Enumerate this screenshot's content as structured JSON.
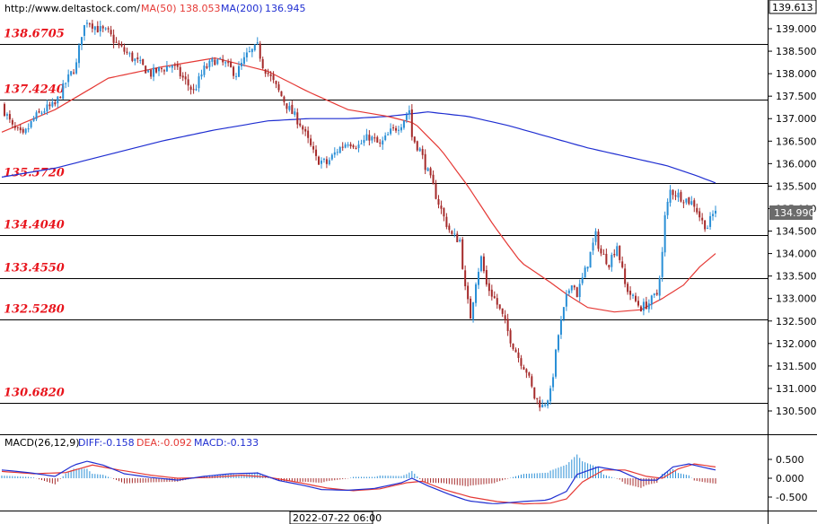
{
  "header": {
    "site": "http://www.deltastock.com/",
    "ma50_label": "MA(50)",
    "ma50_value": "138.053",
    "ma200_label": "MA(200)",
    "ma200_value": "136.945"
  },
  "price_axis": {
    "top_value": "139.613",
    "current_price": "134.990",
    "ticks": [
      "139.000",
      "138.500",
      "138.000",
      "137.500",
      "137.000",
      "136.500",
      "136.000",
      "135.500",
      "135.000",
      "134.500",
      "134.000",
      "133.500",
      "133.000",
      "132.500",
      "132.000",
      "131.500",
      "131.000",
      "130.500"
    ]
  },
  "macd": {
    "title": "MACD(26,12,9)",
    "diff_label": "DIFF:-0.158",
    "dea_label": "DEA:-0.092",
    "macd_label": "MACD:-0.133",
    "ticks": [
      "0.500",
      "0.000",
      "-0.500"
    ]
  },
  "time_axis": {
    "crosshair_label": "2022-07-22 06:00"
  },
  "colors": {
    "up": "#2a8fd6",
    "down": "#a52a2a",
    "ma50": "#e53935",
    "ma200": "#1f2ed1",
    "level_text": "#e8141c",
    "diff": "#1f2ed1",
    "dea": "#e53935"
  },
  "chart_data": {
    "type": "candlestick",
    "title": "",
    "ylim": [
      130.25,
      139.7
    ],
    "levels": [
      {
        "label": "138.6705",
        "value": 138.6705
      },
      {
        "label": "137.4240",
        "value": 137.424
      },
      {
        "label": "135.5720",
        "value": 135.572
      },
      {
        "label": "134.4040",
        "value": 134.404
      },
      {
        "label": "133.4550",
        "value": 133.455
      },
      {
        "label": "132.5280",
        "value": 132.528
      },
      {
        "label": "130.6820",
        "value": 130.682
      }
    ],
    "close_anchors": [
      [
        0,
        137.3
      ],
      [
        4,
        136.8
      ],
      [
        8,
        136.6
      ],
      [
        12,
        137.0
      ],
      [
        16,
        137.2
      ],
      [
        20,
        137.3
      ],
      [
        24,
        137.8
      ],
      [
        28,
        138.2
      ],
      [
        30,
        138.9
      ],
      [
        32,
        139.2
      ],
      [
        36,
        139.0
      ],
      [
        40,
        138.9
      ],
      [
        44,
        138.6
      ],
      [
        48,
        138.4
      ],
      [
        52,
        138.2
      ],
      [
        56,
        138.0
      ],
      [
        60,
        138.1
      ],
      [
        64,
        138.2
      ],
      [
        68,
        137.9
      ],
      [
        72,
        137.6
      ],
      [
        76,
        138.1
      ],
      [
        80,
        138.3
      ],
      [
        84,
        138.2
      ],
      [
        88,
        138.0
      ],
      [
        92,
        138.4
      ],
      [
        96,
        138.6
      ],
      [
        98,
        138.2
      ],
      [
        100,
        138.0
      ],
      [
        104,
        137.6
      ],
      [
        108,
        137.2
      ],
      [
        112,
        136.9
      ],
      [
        115,
        136.5
      ],
      [
        118,
        136.1
      ],
      [
        122,
        136.0
      ],
      [
        126,
        136.3
      ],
      [
        130,
        136.5
      ],
      [
        134,
        136.4
      ],
      [
        138,
        136.6
      ],
      [
        142,
        136.4
      ],
      [
        146,
        136.7
      ],
      [
        150,
        136.9
      ],
      [
        153,
        137.2
      ],
      [
        154,
        136.6
      ],
      [
        157,
        136.3
      ],
      [
        160,
        135.8
      ],
      [
        163,
        135.3
      ],
      [
        166,
        134.8
      ],
      [
        169,
        134.4
      ],
      [
        172,
        134.3
      ],
      [
        174,
        133.2
      ],
      [
        176,
        132.6
      ],
      [
        178,
        133.4
      ],
      [
        180,
        133.9
      ],
      [
        182,
        133.3
      ],
      [
        185,
        133.0
      ],
      [
        188,
        132.6
      ],
      [
        191,
        132.1
      ],
      [
        194,
        131.7
      ],
      [
        197,
        131.4
      ],
      [
        200,
        130.8
      ],
      [
        203,
        130.6
      ],
      [
        206,
        130.9
      ],
      [
        209,
        132.2
      ],
      [
        212,
        133.0
      ],
      [
        214,
        133.4
      ],
      [
        216,
        133.1
      ],
      [
        219,
        133.6
      ],
      [
        221,
        134.0
      ],
      [
        223,
        134.4
      ],
      [
        225,
        134.0
      ],
      [
        228,
        133.8
      ],
      [
        231,
        134.2
      ],
      [
        234,
        133.3
      ],
      [
        237,
        133.0
      ],
      [
        240,
        132.8
      ],
      [
        243,
        132.9
      ],
      [
        246,
        133.1
      ],
      [
        248,
        134.0
      ],
      [
        249,
        134.8
      ],
      [
        251,
        135.4
      ],
      [
        254,
        135.3
      ],
      [
        257,
        135.2
      ],
      [
        260,
        135.1
      ],
      [
        263,
        134.7
      ],
      [
        265,
        134.6
      ],
      [
        268,
        134.99
      ]
    ],
    "ma50": [
      [
        0,
        136.7
      ],
      [
        20,
        137.2
      ],
      [
        40,
        137.9
      ],
      [
        60,
        138.15
      ],
      [
        80,
        138.35
      ],
      [
        100,
        138.05
      ],
      [
        115,
        137.6
      ],
      [
        130,
        137.2
      ],
      [
        145,
        137.05
      ],
      [
        155,
        136.9
      ],
      [
        165,
        136.3
      ],
      [
        175,
        135.5
      ],
      [
        185,
        134.6
      ],
      [
        195,
        133.8
      ],
      [
        205,
        133.4
      ],
      [
        212,
        133.1
      ],
      [
        220,
        132.8
      ],
      [
        230,
        132.7
      ],
      [
        240,
        132.75
      ],
      [
        248,
        133.0
      ],
      [
        256,
        133.3
      ],
      [
        262,
        133.7
      ],
      [
        268,
        134.0
      ]
    ],
    "ma200": [
      [
        0,
        135.7
      ],
      [
        20,
        135.9
      ],
      [
        40,
        136.2
      ],
      [
        60,
        136.5
      ],
      [
        80,
        136.75
      ],
      [
        100,
        136.95
      ],
      [
        115,
        137.0
      ],
      [
        130,
        137.0
      ],
      [
        145,
        137.05
      ],
      [
        160,
        137.15
      ],
      [
        175,
        137.05
      ],
      [
        190,
        136.85
      ],
      [
        205,
        136.6
      ],
      [
        220,
        136.35
      ],
      [
        235,
        136.15
      ],
      [
        250,
        135.95
      ],
      [
        260,
        135.75
      ],
      [
        268,
        135.57
      ]
    ],
    "macd_diff": [
      [
        0,
        0.22
      ],
      [
        10,
        0.15
      ],
      [
        20,
        0.05
      ],
      [
        27,
        0.35
      ],
      [
        32,
        0.45
      ],
      [
        38,
        0.35
      ],
      [
        46,
        0.12
      ],
      [
        56,
        0.02
      ],
      [
        66,
        -0.05
      ],
      [
        76,
        0.05
      ],
      [
        86,
        0.12
      ],
      [
        96,
        0.14
      ],
      [
        104,
        -0.06
      ],
      [
        114,
        -0.2
      ],
      [
        120,
        -0.3
      ],
      [
        130,
        -0.32
      ],
      [
        140,
        -0.27
      ],
      [
        150,
        -0.12
      ],
      [
        154,
        0.0
      ],
      [
        160,
        -0.2
      ],
      [
        167,
        -0.4
      ],
      [
        175,
        -0.6
      ],
      [
        185,
        -0.68
      ],
      [
        195,
        -0.62
      ],
      [
        205,
        -0.58
      ],
      [
        212,
        -0.35
      ],
      [
        216,
        0.1
      ],
      [
        224,
        0.3
      ],
      [
        232,
        0.2
      ],
      [
        240,
        -0.05
      ],
      [
        246,
        -0.05
      ],
      [
        252,
        0.3
      ],
      [
        258,
        0.38
      ],
      [
        264,
        0.28
      ],
      [
        268,
        0.22
      ]
    ],
    "macd_dea": [
      [
        0,
        0.18
      ],
      [
        12,
        0.12
      ],
      [
        24,
        0.15
      ],
      [
        34,
        0.35
      ],
      [
        44,
        0.22
      ],
      [
        56,
        0.08
      ],
      [
        66,
        0.0
      ],
      [
        78,
        0.02
      ],
      [
        90,
        0.08
      ],
      [
        100,
        0.03
      ],
      [
        112,
        -0.12
      ],
      [
        122,
        -0.26
      ],
      [
        132,
        -0.33
      ],
      [
        142,
        -0.28
      ],
      [
        152,
        -0.12
      ],
      [
        158,
        -0.08
      ],
      [
        166,
        -0.3
      ],
      [
        176,
        -0.5
      ],
      [
        186,
        -0.62
      ],
      [
        196,
        -0.68
      ],
      [
        206,
        -0.66
      ],
      [
        212,
        -0.55
      ],
      [
        218,
        -0.1
      ],
      [
        226,
        0.22
      ],
      [
        234,
        0.22
      ],
      [
        242,
        0.05
      ],
      [
        248,
        0.0
      ],
      [
        254,
        0.25
      ],
      [
        260,
        0.38
      ],
      [
        268,
        0.3
      ]
    ]
  }
}
